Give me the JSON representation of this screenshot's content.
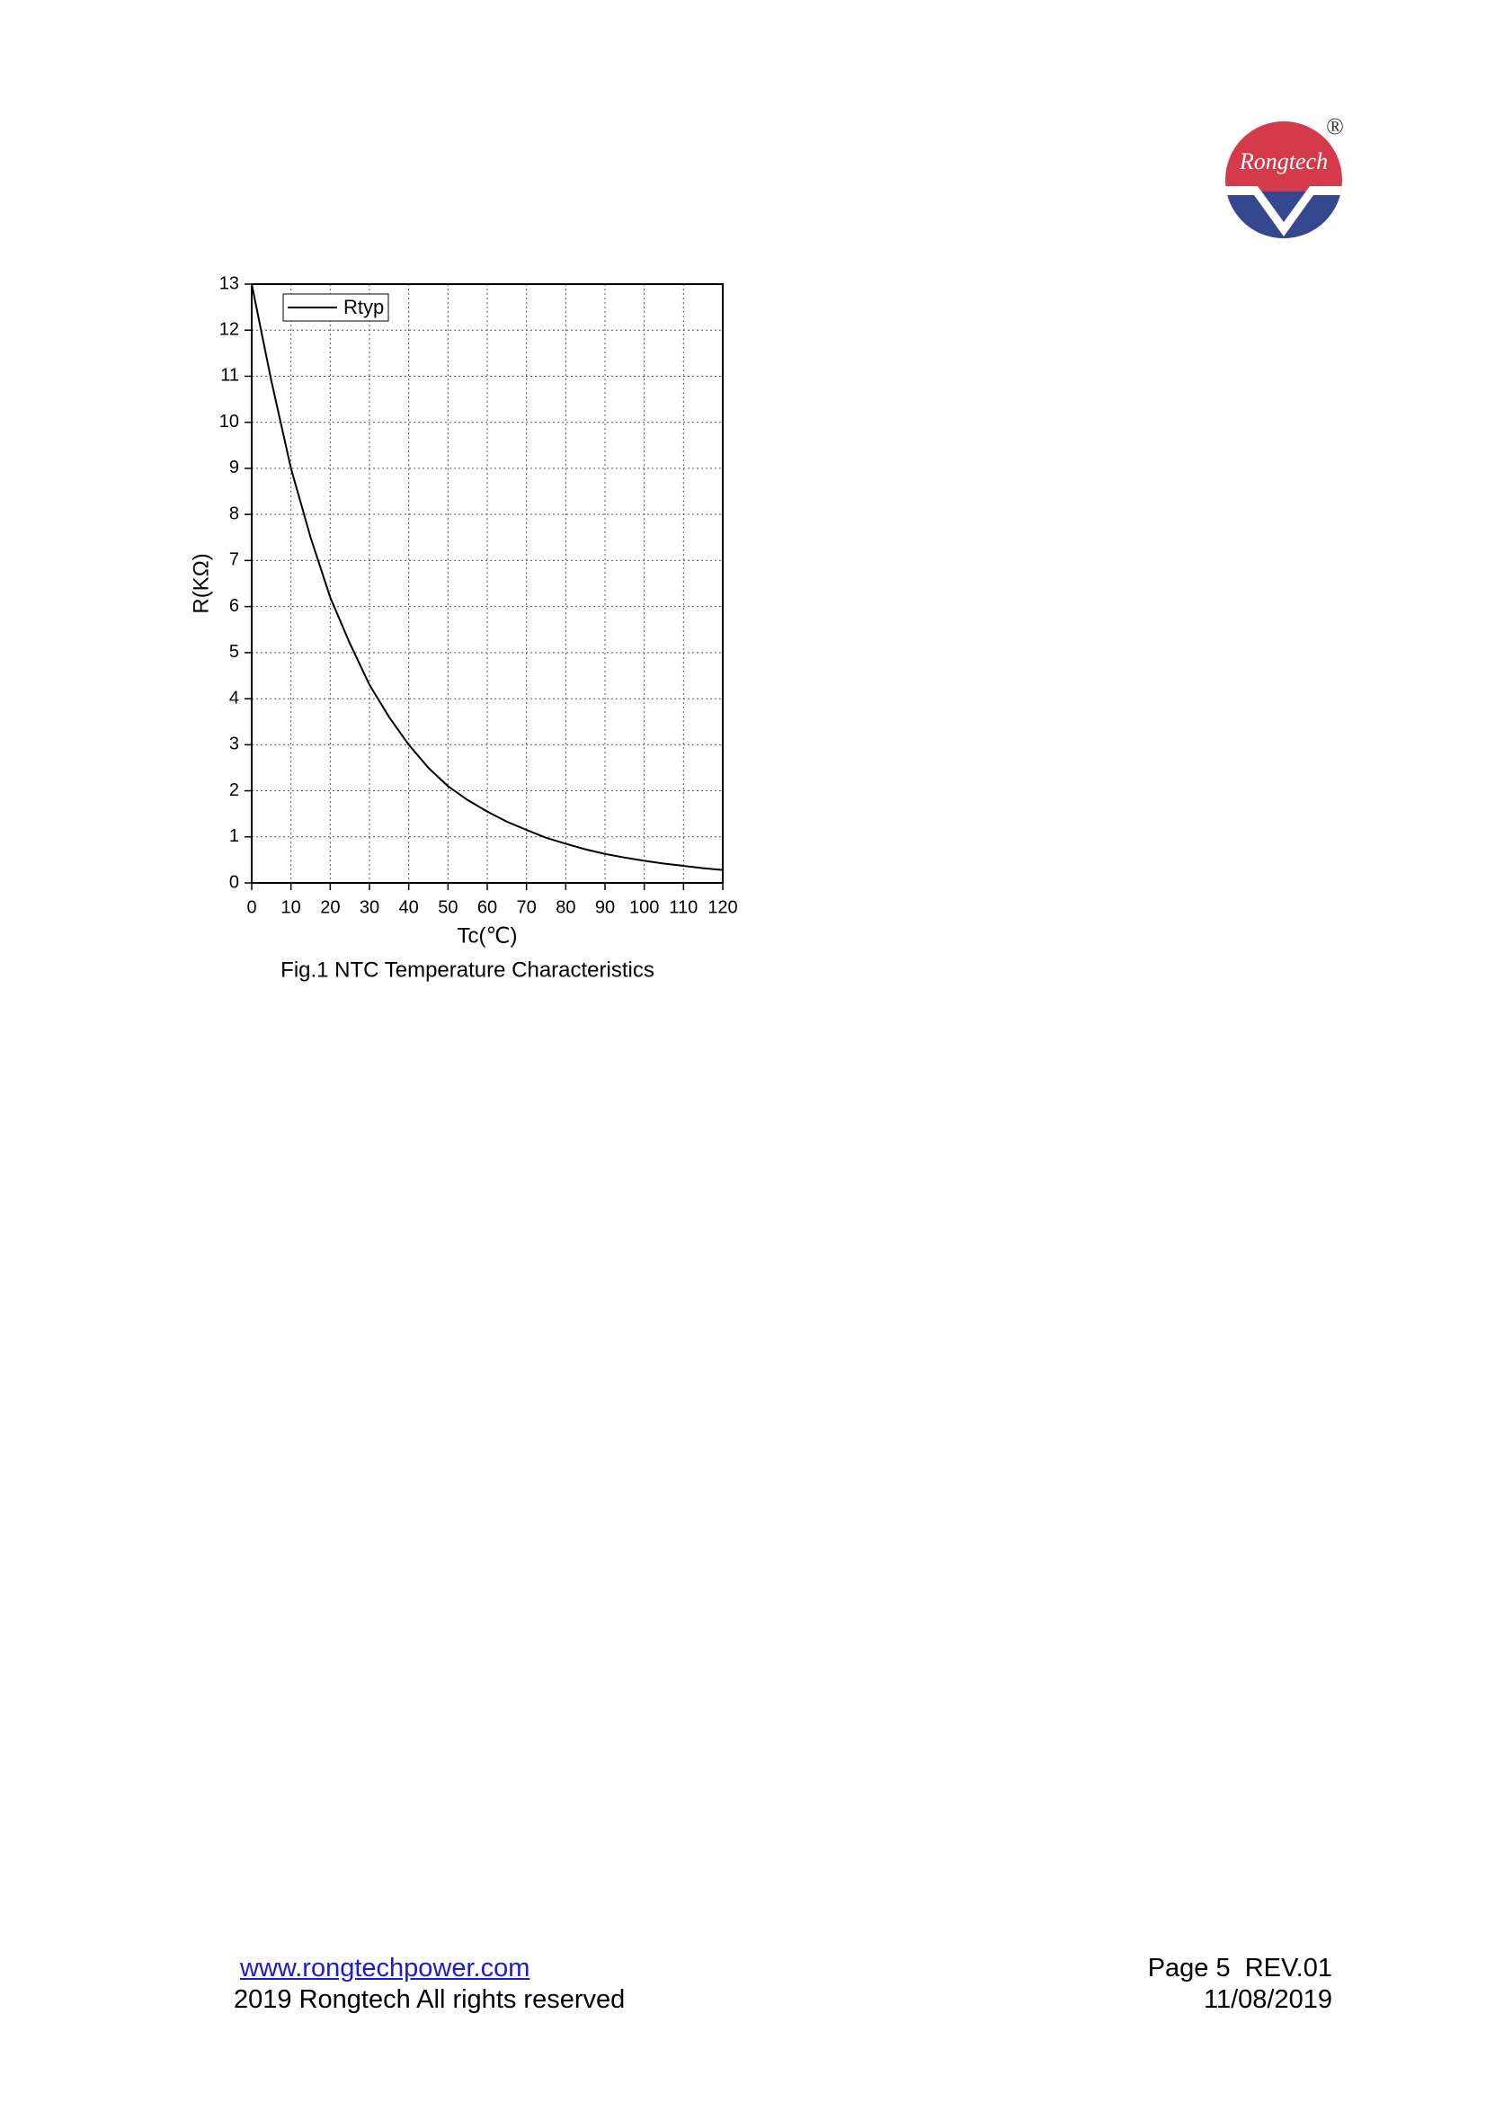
{
  "logo": {
    "name": "Rongtech",
    "mark": "®"
  },
  "chart_data": {
    "type": "line",
    "caption": "Fig.1 NTC Temperature Characteristics",
    "x_label": "Tc(℃)",
    "y_label": "R(KΩ)",
    "x": [
      0,
      5,
      10,
      15,
      20,
      25,
      30,
      35,
      40,
      45,
      50,
      55,
      60,
      65,
      70,
      75,
      80,
      85,
      90,
      95,
      100,
      105,
      110,
      115,
      120
    ],
    "series": [
      {
        "name": "Rtyp",
        "color": "#000000",
        "values": [
          13,
          10.9,
          9.0,
          7.5,
          6.2,
          5.2,
          4.3,
          3.6,
          3.0,
          2.5,
          2.1,
          1.8,
          1.55,
          1.33,
          1.15,
          0.98,
          0.85,
          0.73,
          0.63,
          0.55,
          0.48,
          0.42,
          0.37,
          0.32,
          0.28
        ]
      }
    ],
    "xlim": [
      0,
      120
    ],
    "ylim": [
      0,
      13
    ],
    "xticks": [
      0,
      10,
      20,
      30,
      40,
      50,
      60,
      70,
      80,
      90,
      100,
      110,
      120
    ],
    "yticks": [
      0,
      1,
      2,
      3,
      4,
      5,
      6,
      7,
      8,
      9,
      10,
      11,
      12,
      13
    ],
    "grid": true,
    "legend": "upper left"
  },
  "footer": {
    "website": "www.rongtechpower.com",
    "copyright": "2019 Rongtech All rights reserved",
    "page": "Page 5  REV.01",
    "date": "11/08/2019"
  }
}
